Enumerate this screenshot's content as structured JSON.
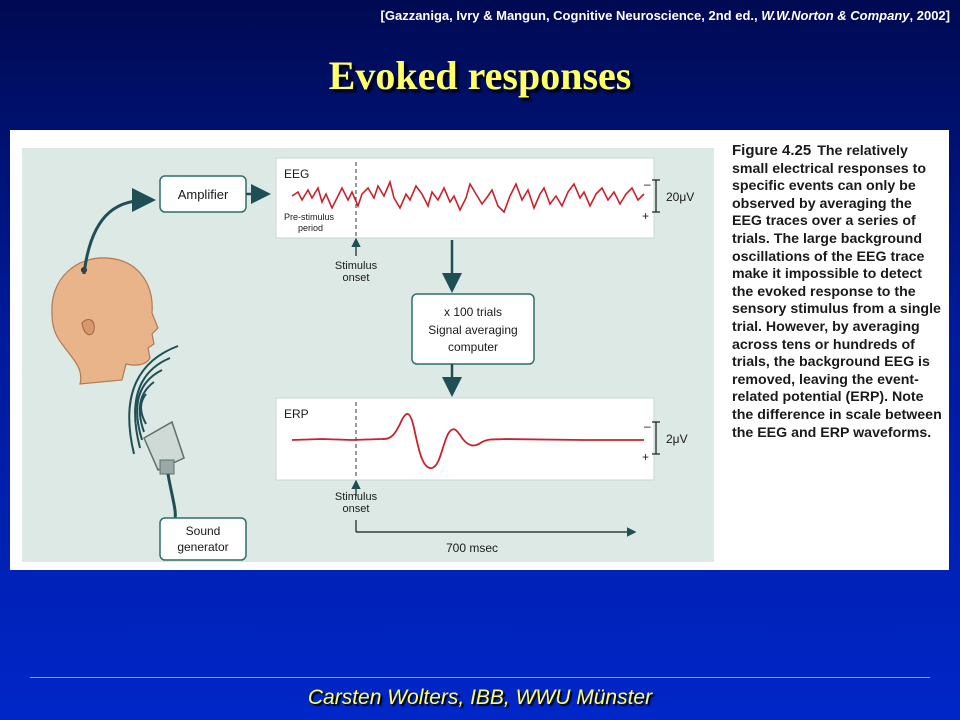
{
  "citation": {
    "prefix": "[Gazzaniga, Ivry & Mangun, Cognitive Neuroscience, 2nd ed., ",
    "publisher": "W.W.Norton & Company",
    "suffix": ", 2002]"
  },
  "slide_title": "Evoked responses",
  "diagram": {
    "amplifier": "Amplifier",
    "eeg_label": "EEG",
    "pre_stimulus_1": "Pre-stimulus",
    "pre_stimulus_2": "period",
    "eeg_scale": "20μV",
    "minus": "–",
    "plus": "+",
    "stimulus_1": "Stimulus",
    "stimulus_2": "onset",
    "averaging_1": "x 100 trials",
    "averaging_2": "Signal averaging",
    "averaging_3": "computer",
    "erp_label": "ERP",
    "erp_scale": "2μV",
    "sound_1": "Sound",
    "sound_2": "generator",
    "time_label": "700 msec",
    "colors": {
      "trace": "#c8232c",
      "box_border": "#2f6f6a",
      "arrow": "#1f4f55",
      "skin": "#e9b48a"
    }
  },
  "caption": {
    "figure_number": "Figure 4.25",
    "text": "The relatively small electrical responses to specific events can only be observed by averaging the EEG traces over a series of trials. The large background oscillations of the EEG trace make it impossible to detect the evoked response to the sensory stimulus from a single trial. However, by averaging across tens or hundreds of trials, the background EEG is removed, leaving the event-related potential (ERP). Note the difference in scale between the EEG and ERP waveforms."
  },
  "footer": "Carsten Wolters, IBB, WWU Münster"
}
